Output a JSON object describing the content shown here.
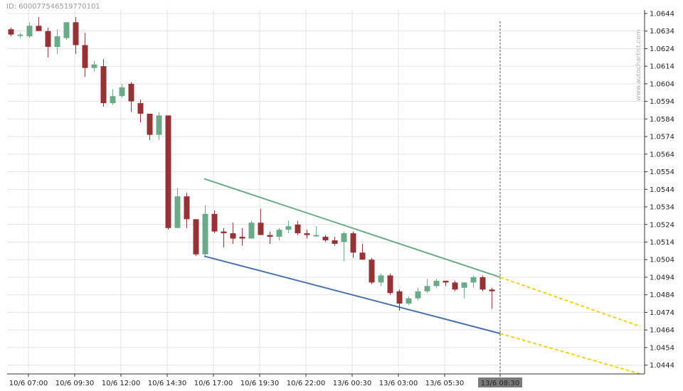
{
  "header": {
    "id_text": "ID: 600077546519770101"
  },
  "watermark": "www.autochartist.com",
  "chart_data": {
    "type": "candlestick",
    "title": "",
    "xlabel": "",
    "ylabel": "",
    "ylim": [
      1.0439,
      1.0646
    ],
    "y_ticks": [
      "1.0644",
      "1.0634",
      "1.0624",
      "1.0614",
      "1.0604",
      "1.0594",
      "1.0584",
      "1.0574",
      "1.0564",
      "1.0554",
      "1.0544",
      "1.0534",
      "1.0524",
      "1.0514",
      "1.0504",
      "1.0494",
      "1.0484",
      "1.0474",
      "1.0464",
      "1.0454",
      "1.0444"
    ],
    "x_ticks": [
      "10/6 07:00",
      "10/6 09:30",
      "10/6 12:00",
      "10/6 14:30",
      "10/6 17:00",
      "10/6 19:30",
      "10/6 22:00",
      "13/6 00:30",
      "13/6 03:00",
      "13/6 05:30",
      "13/6 08:30"
    ],
    "highlight_tick": "13/6 08:30",
    "grid": true,
    "colors": {
      "up": "#6aaa88",
      "down": "#963236",
      "resistance": "#6aaa88",
      "support": "#4a72a8",
      "projection": "#f2d31b",
      "grid": "#e3e3e3",
      "highlight_bg": "#7a7a7a"
    },
    "candles": [
      {
        "o": 1.0635,
        "h": 1.0636,
        "l": 1.0631,
        "c": 1.0632
      },
      {
        "o": 1.0632,
        "h": 1.0633,
        "l": 1.063,
        "c": 1.0632
      },
      {
        "o": 1.0631,
        "h": 1.0639,
        "l": 1.063,
        "c": 1.0637
      },
      {
        "o": 1.0637,
        "h": 1.0642,
        "l": 1.0634,
        "c": 1.0634
      },
      {
        "o": 1.0634,
        "h": 1.0636,
        "l": 1.0619,
        "c": 1.0625
      },
      {
        "o": 1.0625,
        "h": 1.0635,
        "l": 1.0621,
        "c": 1.0631
      },
      {
        "o": 1.063,
        "h": 1.0639,
        "l": 1.0629,
        "c": 1.0639
      },
      {
        "o": 1.0639,
        "h": 1.0642,
        "l": 1.0621,
        "c": 1.0626
      },
      {
        "o": 1.0626,
        "h": 1.0633,
        "l": 1.0608,
        "c": 1.0613
      },
      {
        "o": 1.0613,
        "h": 1.0617,
        "l": 1.0611,
        "c": 1.0615
      },
      {
        "o": 1.0614,
        "h": 1.0618,
        "l": 1.0591,
        "c": 1.0593
      },
      {
        "o": 1.0593,
        "h": 1.0601,
        "l": 1.0592,
        "c": 1.0597
      },
      {
        "o": 1.0597,
        "h": 1.0604,
        "l": 1.0596,
        "c": 1.0602
      },
      {
        "o": 1.0604,
        "h": 1.0605,
        "l": 1.0588,
        "c": 1.0594
      },
      {
        "o": 1.0593,
        "h": 1.0595,
        "l": 1.0582,
        "c": 1.0587
      },
      {
        "o": 1.0587,
        "h": 1.0587,
        "l": 1.0572,
        "c": 1.0575
      },
      {
        "o": 1.0575,
        "h": 1.0588,
        "l": 1.0572,
        "c": 1.0586
      },
      {
        "o": 1.0586,
        "h": 1.0586,
        "l": 1.0521,
        "c": 1.0522
      },
      {
        "o": 1.0522,
        "h": 1.0545,
        "l": 1.0522,
        "c": 1.054
      },
      {
        "o": 1.054,
        "h": 1.0542,
        "l": 1.0522,
        "c": 1.0527
      },
      {
        "o": 1.0527,
        "h": 1.0527,
        "l": 1.0506,
        "c": 1.0507
      },
      {
        "o": 1.0507,
        "h": 1.0535,
        "l": 1.0506,
        "c": 1.053
      },
      {
        "o": 1.053,
        "h": 1.0532,
        "l": 1.0519,
        "c": 1.052
      },
      {
        "o": 1.052,
        "h": 1.0522,
        "l": 1.0511,
        "c": 1.0519
      },
      {
        "o": 1.0519,
        "h": 1.0525,
        "l": 1.0513,
        "c": 1.0516
      },
      {
        "o": 1.0517,
        "h": 1.0522,
        "l": 1.0512,
        "c": 1.0516
      },
      {
        "o": 1.0516,
        "h": 1.0526,
        "l": 1.0516,
        "c": 1.0525
      },
      {
        "o": 1.0525,
        "h": 1.0533,
        "l": 1.0518,
        "c": 1.0518
      },
      {
        "o": 1.0518,
        "h": 1.052,
        "l": 1.0513,
        "c": 1.0517
      },
      {
        "o": 1.0517,
        "h": 1.0522,
        "l": 1.0515,
        "c": 1.0521
      },
      {
        "o": 1.0521,
        "h": 1.0526,
        "l": 1.0519,
        "c": 1.0523
      },
      {
        "o": 1.0524,
        "h": 1.0526,
        "l": 1.0518,
        "c": 1.0519
      },
      {
        "o": 1.0519,
        "h": 1.0521,
        "l": 1.0516,
        "c": 1.0518
      },
      {
        "o": 1.0518,
        "h": 1.0523,
        "l": 1.0517,
        "c": 1.0518
      },
      {
        "o": 1.0517,
        "h": 1.0518,
        "l": 1.0514,
        "c": 1.0515
      },
      {
        "o": 1.0515,
        "h": 1.0517,
        "l": 1.0512,
        "c": 1.0513
      },
      {
        "o": 1.0514,
        "h": 1.052,
        "l": 1.0503,
        "c": 1.0519
      },
      {
        "o": 1.0519,
        "h": 1.052,
        "l": 1.0505,
        "c": 1.0508
      },
      {
        "o": 1.0508,
        "h": 1.0513,
        "l": 1.0504,
        "c": 1.0504
      },
      {
        "o": 1.0504,
        "h": 1.0505,
        "l": 1.049,
        "c": 1.0491
      },
      {
        "o": 1.0491,
        "h": 1.0496,
        "l": 1.0489,
        "c": 1.0495
      },
      {
        "o": 1.0495,
        "h": 1.0496,
        "l": 1.0484,
        "c": 1.0485
      },
      {
        "o": 1.0486,
        "h": 1.0487,
        "l": 1.0475,
        "c": 1.0479
      },
      {
        "o": 1.0479,
        "h": 1.0483,
        "l": 1.0478,
        "c": 1.0482
      },
      {
        "o": 1.0482,
        "h": 1.0488,
        "l": 1.0481,
        "c": 1.0486
      },
      {
        "o": 1.0486,
        "h": 1.0493,
        "l": 1.0485,
        "c": 1.0489
      },
      {
        "o": 1.0489,
        "h": 1.0493,
        "l": 1.0488,
        "c": 1.0492
      },
      {
        "o": 1.0492,
        "h": 1.0492,
        "l": 1.0489,
        "c": 1.0491
      },
      {
        "o": 1.0491,
        "h": 1.0492,
        "l": 1.0486,
        "c": 1.0487
      },
      {
        "o": 1.0488,
        "h": 1.0491,
        "l": 1.0482,
        "c": 1.0491
      },
      {
        "o": 1.0491,
        "h": 1.0495,
        "l": 1.0488,
        "c": 1.0494
      },
      {
        "o": 1.0494,
        "h": 1.0495,
        "l": 1.0486,
        "c": 1.0487
      },
      {
        "o": 1.0487,
        "h": 1.0488,
        "l": 1.0476,
        "c": 1.0486
      }
    ],
    "tick_candle_index": [
      1,
      6,
      11,
      16,
      21,
      26,
      31,
      36,
      41,
      46,
      52
    ],
    "trendlines": [
      {
        "name": "resistance",
        "start_index": 20,
        "start_price": 1.055,
        "end_index": 52,
        "end_price": 1.0494
      },
      {
        "name": "support",
        "start_index": 20,
        "start_price": 1.0506,
        "end_index": 52,
        "end_price": 1.0462
      }
    ],
    "projections": [
      {
        "name": "resistance-projection",
        "start_price": 1.0494,
        "end_price": 1.0466
      },
      {
        "name": "support-projection",
        "start_price": 1.0462,
        "end_price": 1.0439
      }
    ]
  }
}
